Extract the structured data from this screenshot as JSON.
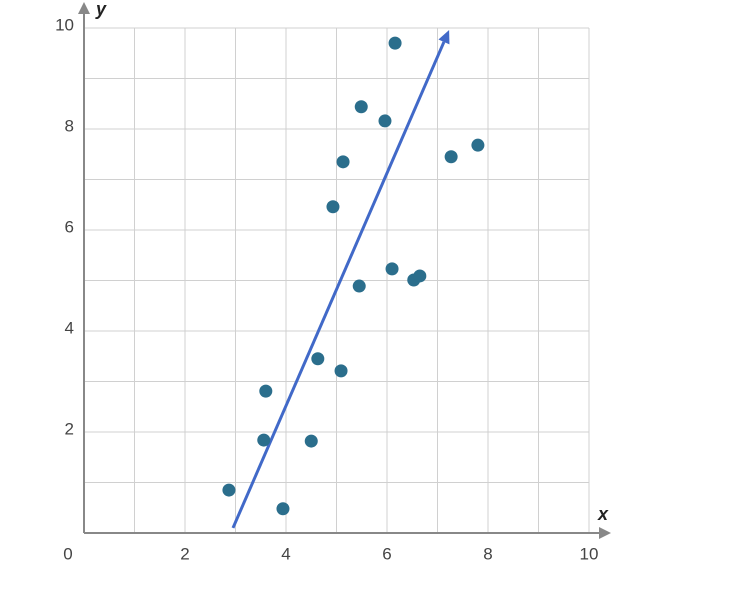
{
  "chart_data": {
    "type": "scatter",
    "x_label": "x",
    "y_label": "y",
    "x": [
      2.87,
      3.94,
      3.56,
      3.6,
      4.5,
      4.63,
      5.09,
      5.45,
      4.93,
      5.13,
      5.49,
      5.96,
      6.16,
      6.1,
      6.53,
      6.65,
      7.27,
      7.8
    ],
    "values": [
      0.85,
      0.48,
      1.84,
      2.81,
      1.82,
      3.45,
      3.21,
      4.89,
      6.46,
      7.35,
      8.44,
      8.16,
      9.7,
      5.23,
      5.01,
      5.09,
      7.45,
      7.68
    ],
    "color": "#2b6e8c",
    "trend_line": {
      "x": [
        2.95,
        7.23
      ],
      "y": [
        0.1,
        9.96
      ],
      "color": "#4169c8"
    },
    "xlim": [
      0,
      10
    ],
    "ylim": [
      0,
      10
    ],
    "xticks": [
      0,
      2,
      4,
      6,
      8,
      10
    ],
    "yticks": [
      2,
      4,
      6,
      8,
      10
    ],
    "xminor": [
      1,
      3,
      5,
      7,
      9
    ],
    "yminor": [
      1,
      3,
      5,
      7,
      9
    ],
    "grid": true
  }
}
